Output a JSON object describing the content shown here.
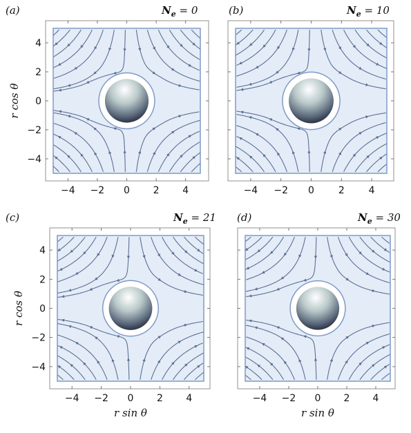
{
  "figure": {
    "panels": [
      {
        "letter": "(a)",
        "ne_label": "N",
        "ne_sub": "e",
        "ne_value": "= 0"
      },
      {
        "letter": "(b)",
        "ne_label": "N",
        "ne_sub": "e",
        "ne_value": "= 10"
      },
      {
        "letter": "(c)",
        "ne_label": "N",
        "ne_sub": "e",
        "ne_value": "= 21"
      },
      {
        "letter": "(d)",
        "ne_label": "N",
        "ne_sub": "e",
        "ne_value": "= 30"
      }
    ],
    "y_axis_title": "r cos θ",
    "x_axis_title": "r sin θ",
    "ticks": [
      "−4",
      "−2",
      "0",
      "2",
      "4"
    ],
    "y_ticks": [
      "4",
      "2",
      "0",
      "−2",
      "−4"
    ],
    "colors": {
      "field_bg": "#e4ecf8",
      "stream": "#5a6f92",
      "frame": "#7f9bc6"
    }
  }
}
